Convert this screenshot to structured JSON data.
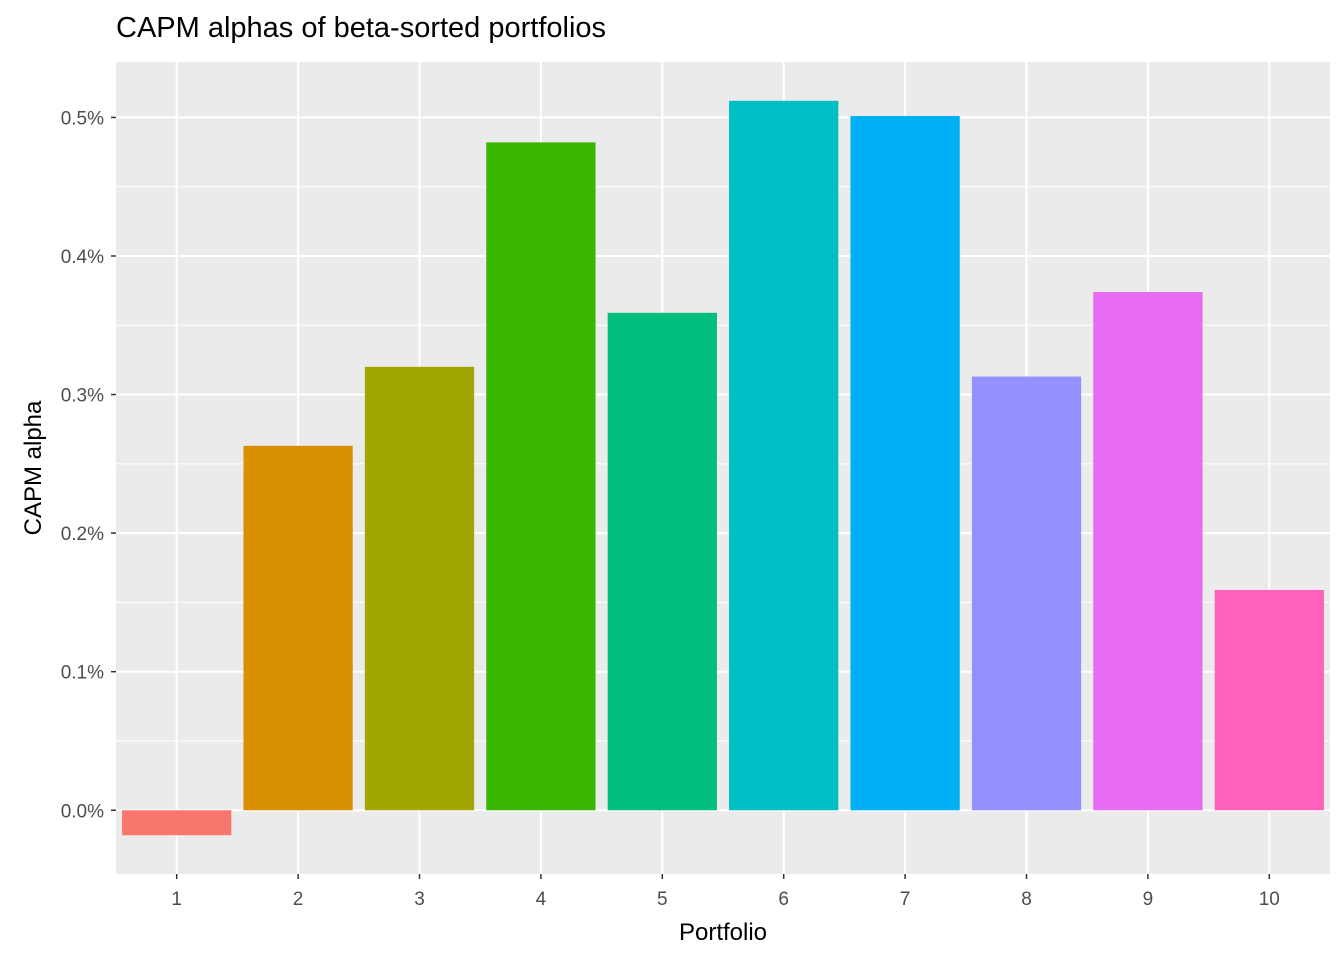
{
  "chart_data": {
    "type": "bar",
    "title": "CAPM alphas of beta-sorted portfolios",
    "xlabel": "Portfolio",
    "ylabel": "CAPM alpha",
    "categories": [
      "1",
      "2",
      "3",
      "4",
      "5",
      "6",
      "7",
      "8",
      "9",
      "10"
    ],
    "values": [
      -0.018,
      0.263,
      0.32,
      0.482,
      0.359,
      0.512,
      0.501,
      0.313,
      0.374,
      0.159
    ],
    "value_unit": "percent",
    "colors": [
      "#F8766D",
      "#D89000",
      "#A3A500",
      "#39B600",
      "#00BF7D",
      "#00BFC4",
      "#00B0F6",
      "#9590FF",
      "#E76BF3",
      "#FF62BC"
    ],
    "ylim": [
      -0.046,
      0.54
    ],
    "yticks": [
      0.0,
      0.1,
      0.2,
      0.3,
      0.4,
      0.5
    ],
    "ytick_labels": [
      "0.0%",
      "0.1%",
      "0.2%",
      "0.3%",
      "0.4%",
      "0.5%"
    ],
    "grid": true,
    "legend": "none",
    "panel_color": "#EBEBEB"
  }
}
